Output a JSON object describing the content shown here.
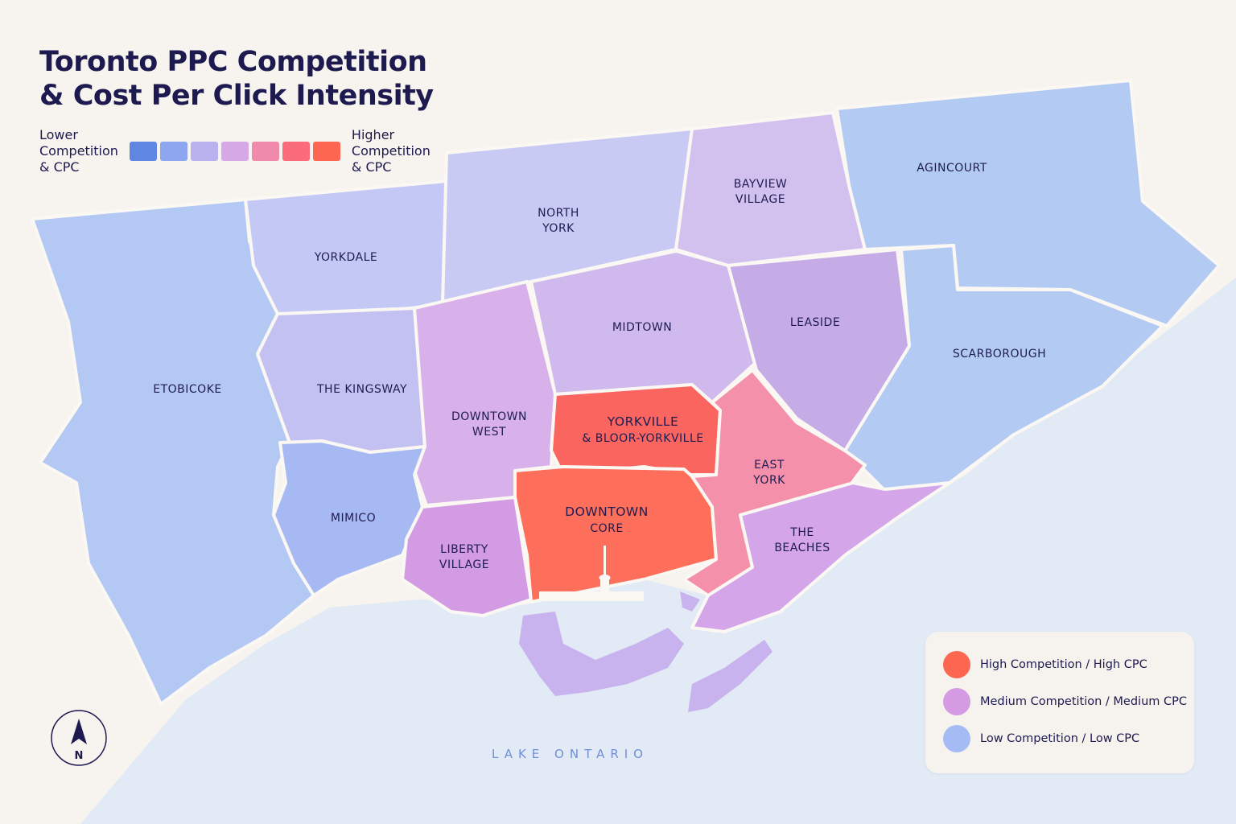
{
  "title": {
    "line1": "Toronto PPC Competition",
    "line2": "& Cost Per Click Intensity"
  },
  "scale": {
    "low_label": [
      "Lower",
      "Competition",
      "& CPC"
    ],
    "high_label": [
      "Higher",
      "Competition",
      "& CPC"
    ],
    "colors": [
      "#5f86e0",
      "#8ea5ef",
      "#b8b3ee",
      "#d6a9e6",
      "#f08aac",
      "#fa6b7c",
      "#fd6752"
    ]
  },
  "regions": [
    {
      "id": "etobicoke",
      "label": [
        "ETOBICOKE"
      ],
      "fill": "#b3c9f3"
    },
    {
      "id": "yorkdale",
      "label": [
        "YORKDALE"
      ],
      "fill": "#c4c8f5"
    },
    {
      "id": "north-york",
      "label": [
        "NORTH",
        "YORK"
      ],
      "fill": "#c8caf4"
    },
    {
      "id": "bayview-village",
      "label": [
        "BAYVIEW",
        "VILLAGE"
      ],
      "fill": "#d2c0ef"
    },
    {
      "id": "agincourt",
      "label": [
        "AGINCOURT"
      ],
      "fill": "#b3cbf3"
    },
    {
      "id": "scarborough",
      "label": [
        "SCARBOROUGH"
      ],
      "fill": "#b3cbf3"
    },
    {
      "id": "midtown",
      "label": [
        "MIDTOWN"
      ],
      "fill": "#d0b9ec"
    },
    {
      "id": "leaside",
      "label": [
        "LEASIDE"
      ],
      "fill": "#c6ace7"
    },
    {
      "id": "the-kingsway",
      "label": [
        "THE KINGSWAY"
      ],
      "fill": "#c3c1f1"
    },
    {
      "id": "downtown-west",
      "label": [
        "DOWNTOWN",
        "WEST"
      ],
      "fill": "#d8b0ea"
    },
    {
      "id": "mimico",
      "label": [
        "MIMICO"
      ],
      "fill": "#a7b9f2"
    },
    {
      "id": "liberty-village",
      "label": [
        "LIBERTY",
        "VILLAGE"
      ],
      "fill": "#d29be3"
    },
    {
      "id": "yorkville",
      "label": [
        "YORKVILLE",
        "& BLOOR-YORKVILLE"
      ],
      "fill": "#fa6560"
    },
    {
      "id": "downtown-core",
      "label": [
        "DOWNTOWN",
        "CORE"
      ],
      "fill": "#fd6e5b"
    },
    {
      "id": "east-york",
      "label": [
        "EAST",
        "YORK"
      ],
      "fill": "#f590aa"
    },
    {
      "id": "the-beaches",
      "label": [
        "THE",
        "BEACHES"
      ],
      "fill": "#d4a5e8"
    }
  ],
  "water": {
    "label": "LAKE ONTARIO",
    "fill": "#e2eaf5",
    "islands_fill": "#c9b3ee"
  },
  "compass": {
    "label": "N"
  },
  "legend": [
    {
      "label": "High Competition / High CPC",
      "color": "#fd6752"
    },
    {
      "label": "Medium Competition / Medium CPC",
      "color": "#d49be3"
    },
    {
      "label": "Low Competition / Low CPC",
      "color": "#a4bbf3"
    }
  ]
}
